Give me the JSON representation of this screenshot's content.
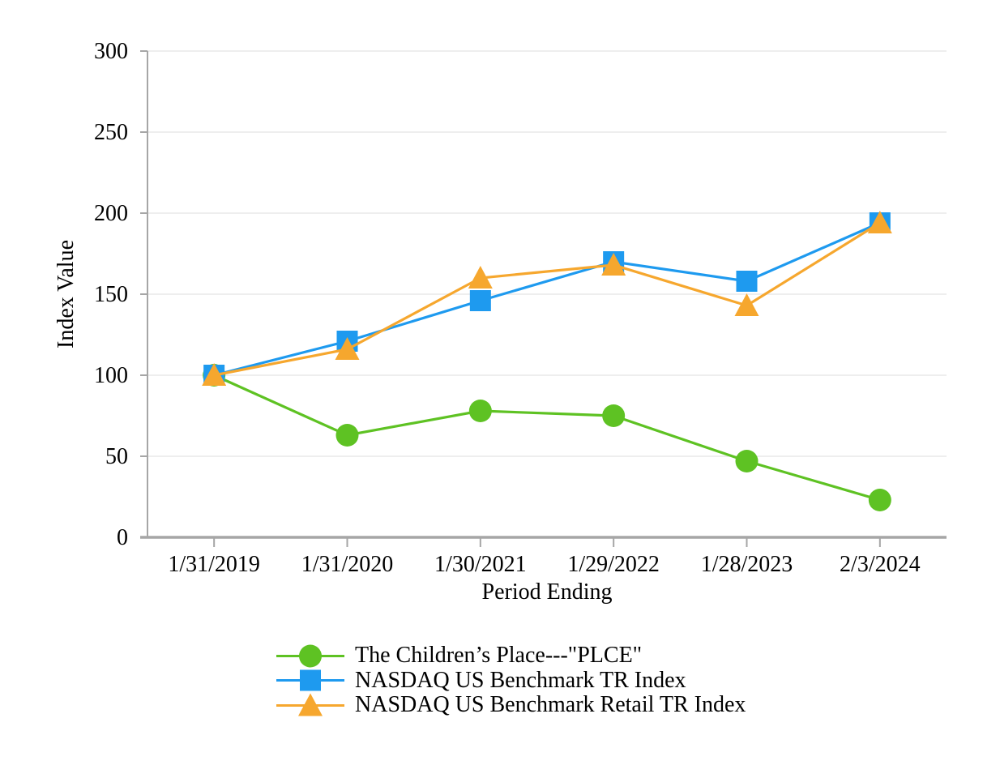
{
  "chart_data": {
    "type": "line",
    "title": "",
    "xlabel": "Period Ending",
    "ylabel": "Index Value",
    "categories": [
      "1/31/2019",
      "1/31/2020",
      "1/30/2021",
      "1/29/2022",
      "1/28/2023",
      "2/3/2024"
    ],
    "ylim": [
      0,
      300
    ],
    "yticks": [
      0,
      50,
      100,
      150,
      200,
      250,
      300
    ],
    "grid": true,
    "legend_position": "bottom-left",
    "grid_color": "#E9E9E9",
    "axis_color": "#A6A6A6",
    "text_color": "#000000",
    "series": [
      {
        "name": "The Children’s Place---\"PLCE\"",
        "marker": "circle",
        "color": "#5EC223",
        "values": [
          100,
          63,
          78,
          75,
          47,
          23
        ]
      },
      {
        "name": "NASDAQ US Benchmark TR Index",
        "marker": "square",
        "color": "#1E9AEF",
        "values": [
          100,
          121,
          146,
          170,
          158,
          194
        ]
      },
      {
        "name": "NASDAQ US Benchmark Retail TR Index",
        "marker": "triangle",
        "color": "#F6A72E",
        "values": [
          100,
          116,
          160,
          168,
          143,
          194
        ]
      }
    ]
  }
}
